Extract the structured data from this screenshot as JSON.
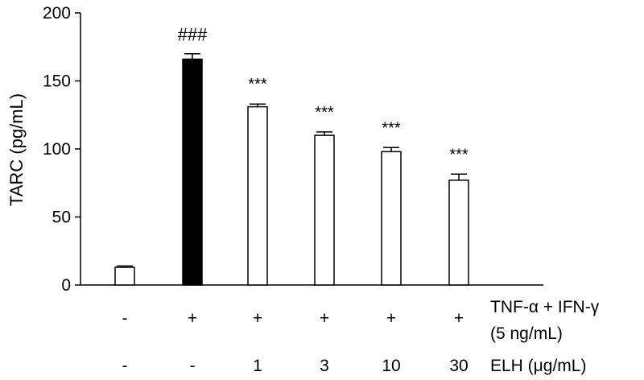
{
  "chart_data": {
    "type": "bar",
    "title": "",
    "ylabel": "TARC (pg/mL)",
    "xlabel": "",
    "ylim": [
      0,
      200
    ],
    "yticks": [
      0,
      50,
      100,
      150,
      200
    ],
    "grid": false,
    "bars": [
      {
        "value": 13,
        "error": 1,
        "fill": "#ffffff",
        "annotation": "",
        "tnf_ifn": "-",
        "elh": "-"
      },
      {
        "value": 166,
        "error": 4,
        "fill": "#000000",
        "annotation": "###",
        "tnf_ifn": "+",
        "elh": "-"
      },
      {
        "value": 131,
        "error": 2,
        "fill": "#ffffff",
        "annotation": "***",
        "tnf_ifn": "+",
        "elh": "1"
      },
      {
        "value": 110,
        "error": 2.5,
        "fill": "#ffffff",
        "annotation": "***",
        "tnf_ifn": "+",
        "elh": "3"
      },
      {
        "value": 98,
        "error": 3,
        "fill": "#ffffff",
        "annotation": "***",
        "tnf_ifn": "+",
        "elh": "10"
      },
      {
        "value": 77,
        "error": 4.5,
        "fill": "#ffffff",
        "annotation": "***",
        "tnf_ifn": "+",
        "elh": "30"
      }
    ],
    "row_labels": {
      "tnf_ifn_line1": "TNF-α + IFN-γ",
      "tnf_ifn_line2": "(5 ng/mL)",
      "elh": "ELH (μg/mL)"
    }
  }
}
